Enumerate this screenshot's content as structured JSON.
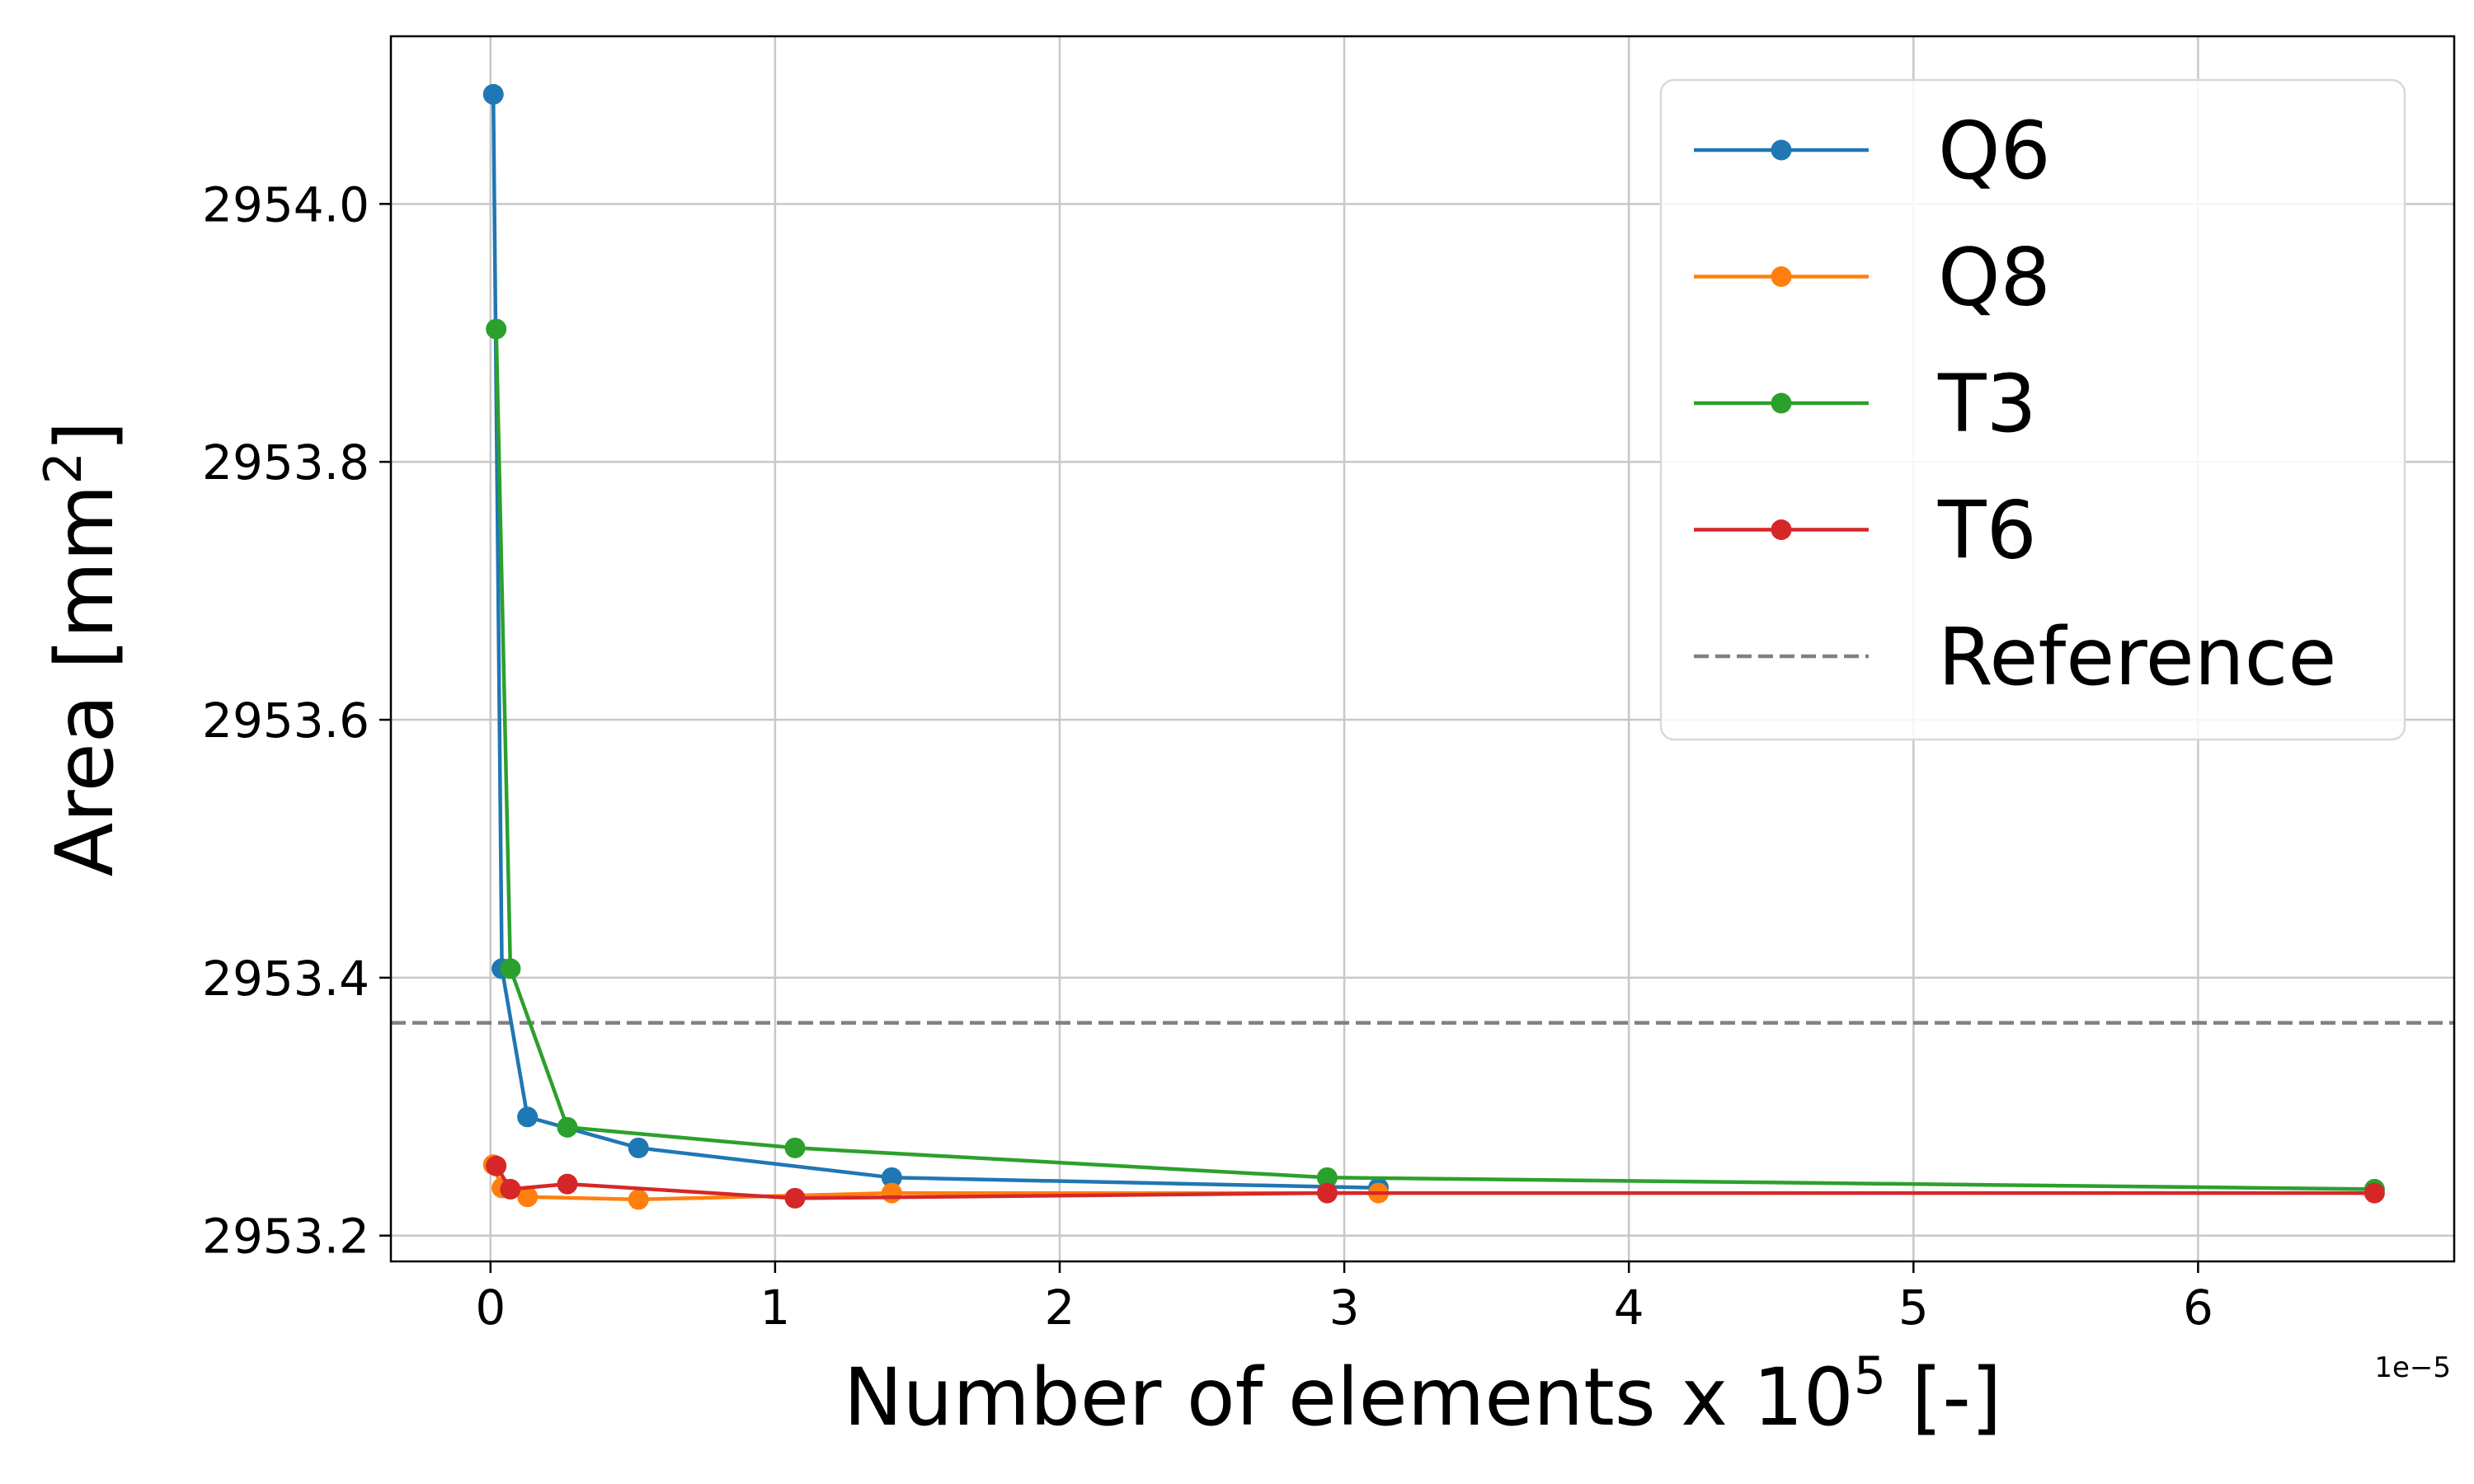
{
  "chart_data": {
    "type": "line",
    "xlabel_main": "Number of elements x 10",
    "xlabel_sup": "5",
    "xlabel_end": " [-]",
    "ylabel_main": "Area [mm",
    "ylabel_sup": "2",
    "ylabel_end": "]",
    "x_offset_text": "1e−5",
    "xlim": [
      -0.35,
      6.9
    ],
    "ylim": [
      2953.18,
      2954.13
    ],
    "xticks": [
      0,
      1,
      2,
      3,
      4,
      5,
      6
    ],
    "xtick_labels": [
      "0",
      "1",
      "2",
      "3",
      "4",
      "5",
      "6"
    ],
    "yticks": [
      2953.2,
      2953.4,
      2953.6,
      2953.8,
      2954.0
    ],
    "ytick_labels": [
      "2953.2",
      "2953.4",
      "2953.6",
      "2953.8",
      "2954.0"
    ],
    "grid": true,
    "legend_position": "top-right",
    "series": [
      {
        "name": "Q6",
        "color": "#1f77b4",
        "x": [
          0.01,
          0.04,
          0.13,
          0.52,
          1.41,
          3.12
        ],
        "y": [
          2954.085,
          2953.407,
          2953.292,
          2953.268,
          2953.245,
          2953.237
        ]
      },
      {
        "name": "Q8",
        "color": "#ff7f0e",
        "x": [
          0.01,
          0.04,
          0.13,
          0.52,
          1.41,
          3.12
        ],
        "y": [
          2953.255,
          2953.237,
          2953.23,
          2953.228,
          2953.233,
          2953.233
        ]
      },
      {
        "name": "T3",
        "color": "#2ca02c",
        "x": [
          0.02,
          0.07,
          0.27,
          1.07,
          2.94,
          6.62
        ],
        "y": [
          2953.903,
          2953.407,
          2953.284,
          2953.268,
          2953.245,
          2953.236
        ]
      },
      {
        "name": "T6",
        "color": "#d62728",
        "x": [
          0.02,
          0.07,
          0.27,
          1.07,
          2.94,
          6.62
        ],
        "y": [
          2953.254,
          2953.236,
          2953.24,
          2953.229,
          2953.233,
          2953.233
        ]
      }
    ],
    "reference": {
      "name": "Reference",
      "value": 2953.365,
      "color": "#808080"
    }
  }
}
